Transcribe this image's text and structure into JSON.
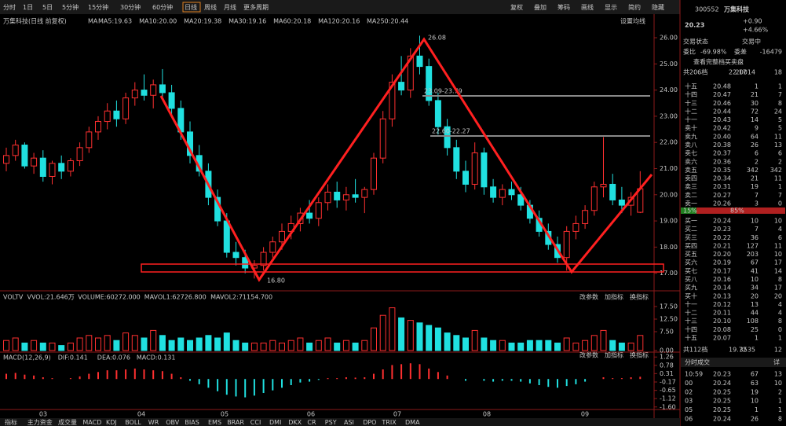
{
  "toolbar": {
    "tabs": [
      "分时",
      "1日",
      "5日",
      "5分钟",
      "15分钟",
      "30分钟",
      "60分钟",
      "日线",
      "周线",
      "月线",
      "更多周期"
    ],
    "active": 7,
    "buttons": [
      "复权",
      "叠加",
      "筹码",
      "画线",
      "显示",
      "简约",
      "隐藏"
    ]
  },
  "legend": {
    "title": "万集科技(日线 前复权)",
    "ma_label": "MA",
    "ma": [
      {
        "text": "MA5:19.63",
        "color": "#ffffff"
      },
      {
        "text": "MA10:20.00",
        "color": "#f0e040"
      },
      {
        "text": "MA20:19.38",
        "color": "#e040e0"
      },
      {
        "text": "MA30:19.16",
        "color": "#40e040"
      },
      {
        "text": "MA60:20.18",
        "color": "#a0a0a0"
      },
      {
        "text": "MA120:20.16",
        "color": "#40c0ff"
      },
      {
        "text": "MA250:20.44",
        "color": "#e0c080"
      }
    ],
    "setting": "设置均线"
  },
  "chart_data": {
    "type": "candlestick",
    "up_color": "#ff3030",
    "down_color": "#20e0e0",
    "ylim": [
      16.6,
      26.3
    ],
    "yticks": [
      {
        "value": 26,
        "label": "26.00"
      },
      {
        "value": 25,
        "label": "25.00"
      },
      {
        "value": 24,
        "label": "24.00"
      },
      {
        "value": 23,
        "label": "23.00"
      },
      {
        "value": 22,
        "label": "22.00"
      },
      {
        "value": 21,
        "label": "21.00"
      },
      {
        "value": 20,
        "label": "20.00"
      },
      {
        "value": 19,
        "label": "19.00"
      },
      {
        "value": 18,
        "label": "18.00"
      },
      {
        "value": 17,
        "label": "17.00"
      }
    ],
    "annotations": {
      "high": "26.08",
      "low": "16.80",
      "range1": "23.09-23.79",
      "range2": "22.60-22.27"
    },
    "candles": [
      [
        21.2,
        21.8,
        20.9,
        21.5
      ],
      [
        21.5,
        22.1,
        21.3,
        21.9
      ],
      [
        21.9,
        22.0,
        21.0,
        21.1
      ],
      [
        21.1,
        21.6,
        20.8,
        21.4
      ],
      [
        21.4,
        21.7,
        20.5,
        20.7
      ],
      [
        20.7,
        21.3,
        20.4,
        21.2
      ],
      [
        21.2,
        21.5,
        20.6,
        20.9
      ],
      [
        20.9,
        21.4,
        20.7,
        21.3
      ],
      [
        21.3,
        22.0,
        21.1,
        21.8
      ],
      [
        21.8,
        22.6,
        21.6,
        22.4
      ],
      [
        22.4,
        23.0,
        22.1,
        22.8
      ],
      [
        22.8,
        23.5,
        22.5,
        23.2
      ],
      [
        23.2,
        23.6,
        22.6,
        22.9
      ],
      [
        22.9,
        23.9,
        22.7,
        23.7
      ],
      [
        23.7,
        24.3,
        23.4,
        24.0
      ],
      [
        24.0,
        24.6,
        23.6,
        23.8
      ],
      [
        23.8,
        24.4,
        23.3,
        24.2
      ],
      [
        24.2,
        24.8,
        23.7,
        23.9
      ],
      [
        23.9,
        24.2,
        23.0,
        23.3
      ],
      [
        23.3,
        23.6,
        22.1,
        22.4
      ],
      [
        22.4,
        22.8,
        21.2,
        21.5
      ],
      [
        21.5,
        21.9,
        20.7,
        20.9
      ],
      [
        20.9,
        21.2,
        19.6,
        19.9
      ],
      [
        19.9,
        20.2,
        18.8,
        19.0
      ],
      [
        19.0,
        19.3,
        17.6,
        17.8
      ],
      [
        17.8,
        18.2,
        17.3,
        17.6
      ],
      [
        17.6,
        17.9,
        17.0,
        17.2
      ],
      [
        17.2,
        17.5,
        16.8,
        17.3
      ],
      [
        17.3,
        18.0,
        17.1,
        17.8
      ],
      [
        17.8,
        18.4,
        17.6,
        18.2
      ],
      [
        18.2,
        18.9,
        17.9,
        18.6
      ],
      [
        18.6,
        19.2,
        18.3,
        18.9
      ],
      [
        18.9,
        19.5,
        18.6,
        19.3
      ],
      [
        19.3,
        19.8,
        18.9,
        19.1
      ],
      [
        19.1,
        19.9,
        18.8,
        19.7
      ],
      [
        19.7,
        20.4,
        19.4,
        20.1
      ],
      [
        20.1,
        20.5,
        19.5,
        19.8
      ],
      [
        19.8,
        20.3,
        19.4,
        20.0
      ],
      [
        20.0,
        20.6,
        19.7,
        19.9
      ],
      [
        19.9,
        20.3,
        19.3,
        20.2
      ],
      [
        20.2,
        21.6,
        20.0,
        21.4
      ],
      [
        21.4,
        23.2,
        21.2,
        22.9
      ],
      [
        22.9,
        24.6,
        22.6,
        24.3
      ],
      [
        24.3,
        25.3,
        23.8,
        24.0
      ],
      [
        24.0,
        25.6,
        23.7,
        25.3
      ],
      [
        25.3,
        26.08,
        24.6,
        24.9
      ],
      [
        24.9,
        25.2,
        23.4,
        23.6
      ],
      [
        23.6,
        23.9,
        22.3,
        22.6
      ],
      [
        22.6,
        22.9,
        21.5,
        21.8
      ],
      [
        21.8,
        22.1,
        20.6,
        20.9
      ],
      [
        20.9,
        21.3,
        20.1,
        20.4
      ],
      [
        20.4,
        22.0,
        20.2,
        21.6
      ],
      [
        21.6,
        21.8,
        20.0,
        20.3
      ],
      [
        20.3,
        20.6,
        19.7,
        19.9
      ],
      [
        19.9,
        20.4,
        19.6,
        20.2
      ],
      [
        20.2,
        20.5,
        19.8,
        20.0
      ],
      [
        20.0,
        20.3,
        19.4,
        19.6
      ],
      [
        19.6,
        19.8,
        18.9,
        19.1
      ],
      [
        19.1,
        19.4,
        18.4,
        18.6
      ],
      [
        18.6,
        18.9,
        17.9,
        18.1
      ],
      [
        18.1,
        18.4,
        17.4,
        17.6
      ],
      [
        17.6,
        18.8,
        17.1,
        18.6
      ],
      [
        18.6,
        19.2,
        18.3,
        18.9
      ],
      [
        18.9,
        19.6,
        18.7,
        19.4
      ],
      [
        19.4,
        20.5,
        19.2,
        20.3
      ],
      [
        20.3,
        22.2,
        19.9,
        20.4
      ],
      [
        20.4,
        20.8,
        19.6,
        19.8
      ],
      [
        19.8,
        20.3,
        19.3,
        19.6
      ],
      [
        19.6,
        20.1,
        19.2,
        19.9
      ],
      [
        19.33,
        20.9,
        19.3,
        20.23
      ]
    ],
    "x_labels": [
      "03",
      "04",
      "05",
      "06",
      "07",
      "08",
      "09"
    ],
    "volume": {
      "legend": [
        "VOLTV",
        "VVOL:21.646万",
        "VOLUME:60272.000",
        "MAVOL1:62726.800",
        "MAVOL2:71154.700"
      ],
      "ylim": [
        0,
        20
      ],
      "yticks": [
        {
          "value": 17.5,
          "label": "17.50"
        },
        {
          "value": 12.5,
          "label": "12.50"
        },
        {
          "value": 7.5,
          "label": "7.50"
        },
        {
          "value": 0,
          "label": "0.00"
        }
      ],
      "values": [
        4,
        5,
        3,
        4,
        3,
        3,
        2,
        3,
        5,
        6,
        5,
        6,
        4,
        7,
        6,
        5,
        8,
        6,
        4,
        5,
        4,
        5,
        6,
        5,
        7,
        4,
        3,
        3,
        3,
        4,
        3,
        4,
        5,
        3,
        4,
        5,
        3,
        4,
        3,
        4,
        9,
        14,
        17,
        13,
        12,
        11,
        10,
        9,
        7,
        6,
        5,
        8,
        5,
        4,
        4,
        3,
        3,
        4,
        4,
        4,
        3,
        5,
        3,
        4,
        6,
        8,
        4,
        3,
        3,
        6
      ]
    },
    "macd": {
      "legend": [
        "MACD(12,26,9)",
        "DIF:0.141",
        "DEA:0.076",
        "MACD:0.131"
      ],
      "ylim": [
        -1.7,
        1.36
      ],
      "yticks": [
        1.26,
        0.78,
        0.31,
        -0.17,
        -0.65,
        -1.12,
        {
          "value": -1.6,
          "label": "-1.60"
        }
      ],
      "values": [
        0.3,
        0.35,
        0.25,
        0.2,
        0.1,
        0.05,
        0.0,
        0.05,
        0.15,
        0.3,
        0.4,
        0.5,
        0.5,
        0.55,
        0.6,
        0.55,
        0.5,
        0.45,
        0.3,
        0.1,
        -0.1,
        -0.3,
        -0.5,
        -0.7,
        -0.9,
        -1.0,
        -1.05,
        -0.95,
        -0.8,
        -0.65,
        -0.5,
        -0.35,
        -0.2,
        -0.15,
        -0.05,
        0.05,
        0.05,
        0.1,
        0.08,
        0.1,
        0.3,
        0.55,
        0.8,
        0.85,
        0.9,
        0.85,
        0.6,
        0.4,
        0.2,
        0.0,
        -0.1,
        0.0,
        -0.1,
        -0.15,
        -0.1,
        -0.1,
        -0.15,
        -0.25,
        -0.35,
        -0.45,
        -0.5,
        -0.4,
        -0.3,
        -0.15,
        0.0,
        0.1,
        0.05,
        0.05,
        0.1,
        0.13
      ]
    },
    "panel_buttons": [
      "改参数",
      "加指标",
      "换指标"
    ]
  },
  "bottom_tabs": [
    "指标",
    "主力资金",
    "成交量",
    "MACD",
    "KDJ",
    "BOLL",
    "WR",
    "OBV",
    "BIAS",
    "EMS",
    "BRAR",
    "CCI",
    "DMI",
    "DKX",
    "CR",
    "PSY",
    "ASI",
    "DPO",
    "TRIX",
    "DMA"
  ],
  "quote": {
    "code": "300552",
    "name": "万集科技",
    "price": "20.23",
    "change": "+0.90",
    "pct": "+4.66%",
    "status_label": "交易状态",
    "status": "交易中",
    "wb_label": "委比",
    "wb": "-69.98%",
    "wc_label": "委差",
    "wc": "-16479",
    "full_book": "查看完整档买卖盘",
    "sell_total": [
      "共206档",
      "22.17",
      "20014",
      "18"
    ],
    "buy_total": [
      "共112档",
      "19.72",
      "3535",
      "12"
    ],
    "ratio": [
      "15%",
      "85%"
    ]
  },
  "sells": [
    [
      "十五",
      "20.48",
      1,
      1
    ],
    [
      "十四",
      "20.47",
      21,
      7
    ],
    [
      "十三",
      "20.46",
      30,
      8
    ],
    [
      "十二",
      "20.44",
      72,
      24
    ],
    [
      "十一",
      "20.43",
      14,
      5
    ],
    [
      "卖十",
      "20.42",
      9,
      5
    ],
    [
      "卖九",
      "20.40",
      64,
      11
    ],
    [
      "卖八",
      "20.38",
      26,
      13
    ],
    [
      "卖七",
      "20.37",
      6,
      6
    ],
    [
      "卖六",
      "20.36",
      2,
      2
    ],
    [
      "卖五",
      "20.35",
      342,
      342
    ],
    [
      "卖四",
      "20.34",
      21,
      11
    ],
    [
      "卖三",
      "20.31",
      19,
      1
    ],
    [
      "卖二",
      "20.27",
      7,
      7
    ],
    [
      "卖一",
      "20.26",
      3,
      0
    ]
  ],
  "buys": [
    [
      "买一",
      "20.24",
      10,
      10
    ],
    [
      "买二",
      "20.23",
      7,
      4
    ],
    [
      "买三",
      "20.22",
      36,
      6
    ],
    [
      "买四",
      "20.21",
      127,
      11
    ],
    [
      "买五",
      "20.20",
      203,
      10
    ],
    [
      "买六",
      "20.19",
      67,
      17
    ],
    [
      "买七",
      "20.17",
      41,
      14
    ],
    [
      "买八",
      "20.16",
      10,
      8
    ],
    [
      "买九",
      "20.14",
      34,
      17
    ],
    [
      "买十",
      "20.13",
      20,
      20
    ],
    [
      "十一",
      "20.12",
      13,
      4
    ],
    [
      "十二",
      "20.11",
      44,
      4
    ],
    [
      "十三",
      "20.10",
      108,
      8
    ],
    [
      "十四",
      "20.08",
      25,
      0
    ],
    [
      "十五",
      "20.07",
      1,
      1
    ]
  ],
  "trades": {
    "title": "分时成交",
    "toggle": "详",
    "rows": [
      [
        "10:59",
        "20.23",
        67,
        13
      ],
      [
        "00",
        "20.24",
        63,
        10
      ],
      [
        "02",
        "20.25",
        19,
        2
      ],
      [
        "03",
        "20.25",
        10,
        1
      ],
      [
        "05",
        "20.25",
        1,
        1
      ],
      [
        "06",
        "20.24",
        26,
        8
      ]
    ]
  }
}
